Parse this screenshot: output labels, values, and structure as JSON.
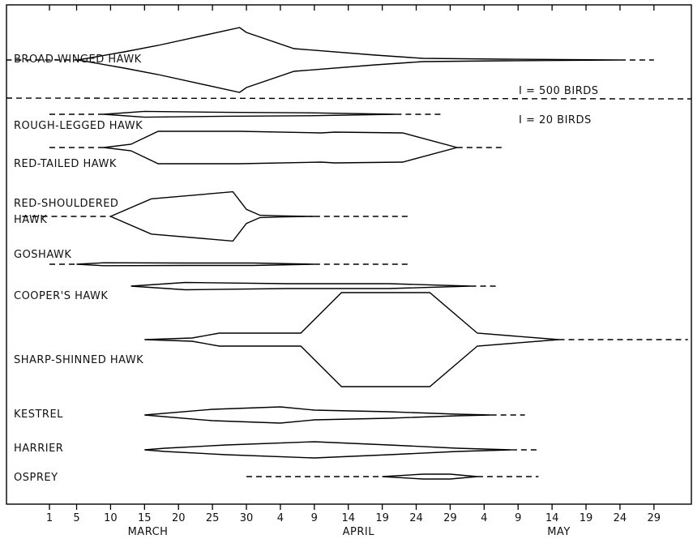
{
  "chart_data": {
    "type": "area",
    "title": "",
    "subtitle": "",
    "xlabel": "",
    "ylabel": "",
    "x_axis": {
      "tick_labels": [
        "1",
        "5",
        "10",
        "15",
        "20",
        "25",
        "30",
        "4",
        "9",
        "14",
        "19",
        "24",
        "29",
        "4",
        "9",
        "14",
        "19",
        "24",
        "29"
      ],
      "tick_days": [
        0,
        4,
        9,
        14,
        19,
        24,
        29,
        34,
        39,
        44,
        49,
        54,
        59,
        64,
        69,
        74,
        79,
        84,
        89
      ],
      "month_labels": [
        {
          "label": "MARCH",
          "day": 14.5
        },
        {
          "label": "APRIL",
          "day": 45.5
        },
        {
          "label": "MAY",
          "day": 75
        }
      ],
      "range_days": [
        -5,
        95
      ]
    },
    "legend": [
      {
        "text": "I = 500 BIRDS",
        "applies_to": "BROAD-WINGED HAWK"
      },
      {
        "text": "I = 20 BIRDS",
        "applies_to": "other species"
      }
    ],
    "grid": false,
    "series": [
      {
        "name": "BROAD-WINGED HAWK",
        "label_lines": [
          "BROAD-WINGED HAWK"
        ],
        "units_per_bird_scale": "I = 500 BIRDS",
        "dashes": [
          [
            -6.4,
            4.2
          ],
          [
            84,
            89
          ]
        ],
        "profile": [
          [
            4.2,
            0
          ],
          [
            11,
            5
          ],
          [
            16,
            9
          ],
          [
            28,
            20
          ],
          [
            29,
            17
          ],
          [
            36,
            7
          ],
          [
            48,
            3
          ],
          [
            55,
            1
          ],
          [
            67,
            0.5
          ],
          [
            84,
            0
          ]
        ]
      },
      {
        "name": "ROUGH-LEGGED HAWK",
        "label_lines": [
          "ROUGH-LEGGED HAWK"
        ],
        "dashes": [
          [
            0,
            8
          ],
          [
            51,
            58
          ]
        ],
        "profile": [
          [
            8,
            0
          ],
          [
            14,
            1.2
          ],
          [
            26,
            0.8
          ],
          [
            38,
            0.6
          ],
          [
            51,
            0
          ]
        ]
      },
      {
        "name": "RED-TAILED HAWK",
        "label_lines": [
          "RED-TAILED HAWK"
        ],
        "dashes": [
          [
            0,
            8
          ],
          [
            60,
            67
          ]
        ],
        "profile": [
          [
            8,
            0
          ],
          [
            12,
            2
          ],
          [
            16,
            10
          ],
          [
            28,
            10
          ],
          [
            40,
            9
          ],
          [
            42,
            9.5
          ],
          [
            52,
            9
          ],
          [
            60,
            0
          ]
        ]
      },
      {
        "name": "RED-SHOULDERED HAWK",
        "label_lines": [
          "RED-SHOULDERED",
          "HAWK"
        ],
        "dashes": [
          [
            -4,
            9
          ],
          [
            39,
            53
          ]
        ],
        "profile": [
          [
            9,
            0
          ],
          [
            15,
            15
          ],
          [
            27,
            21
          ],
          [
            29,
            6
          ],
          [
            31,
            1
          ],
          [
            34,
            0.5
          ],
          [
            39,
            0
          ]
        ]
      },
      {
        "name": "GOSHAWK",
        "label_lines": [
          "GOSHAWK"
        ],
        "dashes": [
          [
            0,
            4
          ],
          [
            39,
            53
          ]
        ],
        "profile": [
          [
            4,
            0
          ],
          [
            8,
            0.6
          ],
          [
            20,
            0.5
          ],
          [
            30,
            0.5
          ],
          [
            39,
            0
          ]
        ]
      },
      {
        "name": "COOPER'S HAWK",
        "label_lines": [
          "COOPER'S HAWK"
        ],
        "dashes": [
          [
            62,
            66
          ]
        ],
        "profile": [
          [
            12,
            0
          ],
          [
            20,
            1.5
          ],
          [
            35,
            1
          ],
          [
            50,
            1
          ],
          [
            62,
            0
          ]
        ]
      },
      {
        "name": "SHARP-SHINNED HAWK",
        "label_lines": [
          "SHARP-SHINNED HAWK"
        ],
        "dashes": [
          [
            75,
            94
          ]
        ],
        "profile": [
          [
            14,
            0
          ],
          [
            21,
            1
          ],
          [
            25,
            4
          ],
          [
            37,
            4
          ],
          [
            43,
            29
          ],
          [
            56,
            29
          ],
          [
            63,
            4
          ],
          [
            75,
            0
          ]
        ]
      },
      {
        "name": "KESTREL",
        "label_lines": [
          "KESTREL"
        ],
        "dashes": [
          [
            65,
            70
          ]
        ],
        "profile": [
          [
            14,
            0
          ],
          [
            24,
            3.5
          ],
          [
            34,
            5
          ],
          [
            39,
            3
          ],
          [
            50,
            2
          ],
          [
            60,
            0.5
          ],
          [
            65,
            0
          ]
        ]
      },
      {
        "name": "HARRIER",
        "label_lines": [
          "HARRIER"
        ],
        "dashes": [
          [
            68,
            72
          ]
        ],
        "profile": [
          [
            14,
            0
          ],
          [
            17,
            1
          ],
          [
            26,
            3
          ],
          [
            39,
            5
          ],
          [
            50,
            3
          ],
          [
            60,
            1
          ],
          [
            68,
            0
          ]
        ]
      },
      {
        "name": "OSPREY",
        "label_lines": [
          "OSPREY"
        ],
        "dashes": [
          [
            29,
            49
          ],
          [
            63,
            72
          ]
        ],
        "profile": [
          [
            49,
            0
          ],
          [
            55,
            1
          ],
          [
            59,
            1
          ],
          [
            63,
            0
          ]
        ]
      }
    ]
  }
}
